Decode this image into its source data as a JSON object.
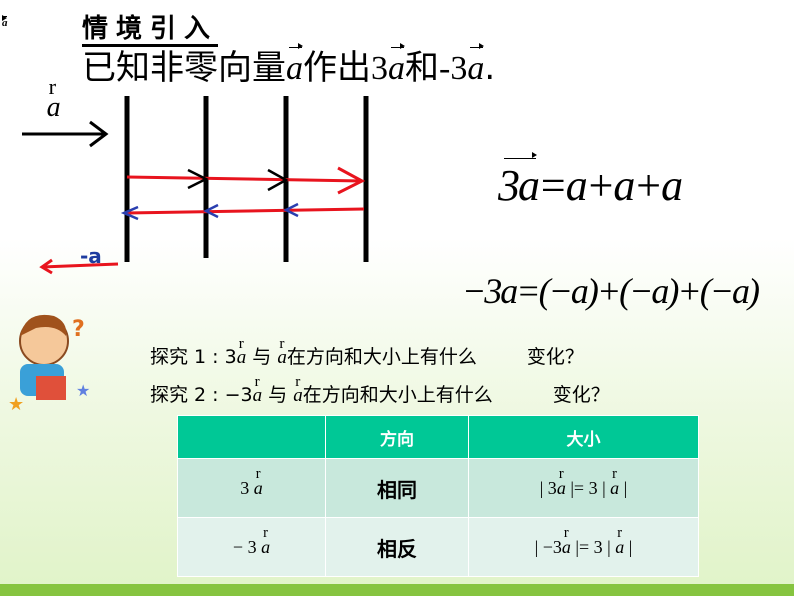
{
  "corner_label": "a",
  "heading": "情境引入",
  "title": {
    "prefix": "已知非零向量",
    "a": "a",
    "mid": "作出",
    "c1": "3",
    "a2": "a",
    "and": "和",
    "c2": "-3",
    "a3": "a",
    "end": "."
  },
  "diagram": {
    "a_label": "a",
    "neg_a_label": "-a",
    "colors": {
      "red": "#e8141e",
      "blue": "#2a3fb0",
      "neg_label": "#1e3ca0"
    }
  },
  "eq1": {
    "lhs": "3a",
    "rhs": "=a+a+a"
  },
  "eq2": {
    "text": "−3a=(−a)+(−a)+(−a)"
  },
  "questions": [
    {
      "lead": "探究 1 : 3",
      "a": "a",
      "mid": "与",
      "a2": "a",
      "rest": "在方向和大小上有什么",
      "tail": "变化？"
    },
    {
      "lead": "探究 2 : −3",
      "a": "a",
      "mid": "与",
      "a2": "a",
      "rest": "在方向和大小上有什么",
      "tail": "变化？"
    }
  ],
  "table": {
    "headers": [
      "",
      "方向",
      "大小"
    ],
    "rows": [
      {
        "expr": "3",
        "dir": "相同",
        "size_l": "| 3",
        "size_m": " |= 3 |",
        "size_r": " |"
      },
      {
        "expr": "−  3",
        "dir": "相反",
        "size_l": "| −3",
        "size_m": " |= 3 |",
        "size_r": " |"
      }
    ]
  }
}
